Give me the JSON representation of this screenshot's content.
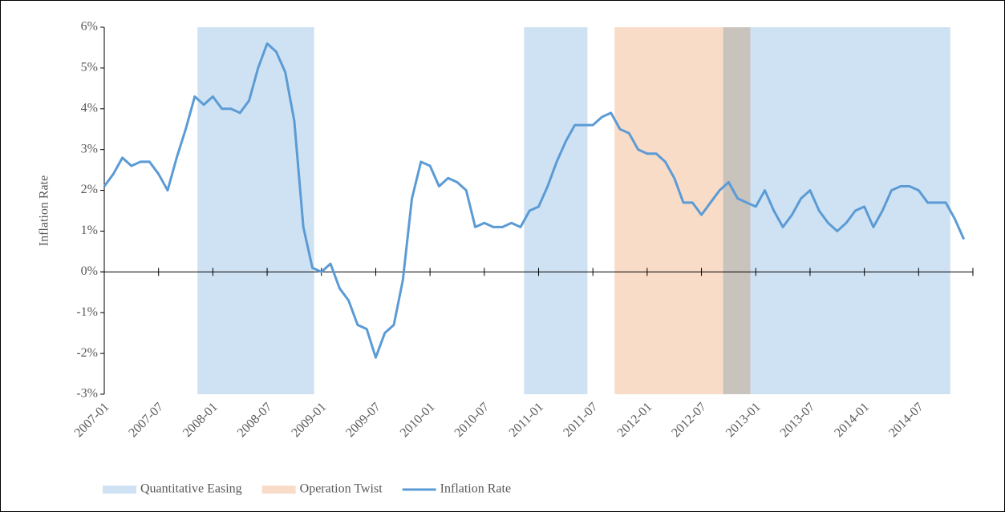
{
  "chart_data": {
    "type": "line",
    "y_label": "Inflation Rate",
    "categories": [
      "2007-01",
      null,
      null,
      null,
      null,
      null,
      "2007-07",
      null,
      null,
      null,
      null,
      null,
      "2008-01",
      null,
      null,
      null,
      null,
      null,
      "2008-07",
      null,
      null,
      null,
      null,
      null,
      "2009-01",
      null,
      null,
      null,
      null,
      null,
      "2009-07",
      null,
      null,
      null,
      null,
      null,
      "2010-01",
      null,
      null,
      null,
      null,
      null,
      "2010-07",
      null,
      null,
      null,
      null,
      null,
      "2011-01",
      null,
      null,
      null,
      null,
      null,
      "2011-07",
      null,
      null,
      null,
      null,
      null,
      "2012-01",
      null,
      null,
      null,
      null,
      null,
      "2012-07",
      null,
      null,
      null,
      null,
      null,
      "2013-01",
      null,
      null,
      null,
      null,
      null,
      "2013-07",
      null,
      null,
      null,
      null,
      null,
      "2014-01",
      null,
      null,
      null,
      null,
      null,
      "2014-07",
      null,
      null,
      null,
      null,
      null
    ],
    "series": [
      {
        "name": "Inflation Rate",
        "color": "#5b9bd5",
        "values": [
          2.1,
          2.4,
          2.8,
          2.6,
          2.7,
          2.7,
          2.4,
          2.0,
          2.8,
          3.5,
          4.3,
          4.1,
          4.3,
          4.0,
          4.0,
          3.9,
          4.2,
          5.0,
          5.6,
          5.4,
          4.9,
          3.7,
          1.1,
          0.1,
          0.0,
          0.2,
          -0.4,
          -0.7,
          -1.3,
          -1.4,
          -2.1,
          -1.5,
          -1.3,
          -0.2,
          1.8,
          2.7,
          2.6,
          2.1,
          2.3,
          2.2,
          2.0,
          1.1,
          1.2,
          1.1,
          1.1,
          1.2,
          1.1,
          1.5,
          1.6,
          2.1,
          2.7,
          3.2,
          3.6,
          3.6,
          3.6,
          3.8,
          3.9,
          3.5,
          3.4,
          3.0,
          2.9,
          2.9,
          2.7,
          2.3,
          1.7,
          1.7,
          1.4,
          1.7,
          2.0,
          2.2,
          1.8,
          1.7,
          1.6,
          2.0,
          1.5,
          1.1,
          1.4,
          1.8,
          2.0,
          1.5,
          1.2,
          1.0,
          1.2,
          1.5,
          1.6,
          1.1,
          1.5,
          2.0,
          2.1,
          2.1,
          2.0,
          1.7,
          1.7,
          1.7,
          1.3,
          0.8
        ]
      }
    ],
    "shaded_regions": [
      {
        "name": "Operation Twist",
        "color": "#f8dcc8",
        "spans": [
          [
            56.4,
            71.4
          ]
        ]
      },
      {
        "name": "Quantitative Easing",
        "color": "#cfe2f3",
        "spans": [
          [
            10.3,
            23.2
          ],
          [
            46.4,
            53.4
          ],
          [
            68.4,
            93.5
          ]
        ]
      }
    ],
    "ylim": [
      -3,
      6
    ],
    "yticks": [
      {
        "value": -3,
        "label": "-3%"
      },
      {
        "value": -2,
        "label": "-2%"
      },
      {
        "value": -1,
        "label": "-1%"
      },
      {
        "value": 0,
        "label": "0%"
      },
      {
        "value": 1,
        "label": "1%"
      },
      {
        "value": 2,
        "label": "2%"
      },
      {
        "value": 3,
        "label": "3%"
      },
      {
        "value": 4,
        "label": "4%"
      },
      {
        "value": 5,
        "label": "5%"
      },
      {
        "value": 6,
        "label": "6%"
      }
    ],
    "legend": [
      "Quantitative Easing",
      "Operation Twist",
      "Inflation Rate"
    ]
  }
}
